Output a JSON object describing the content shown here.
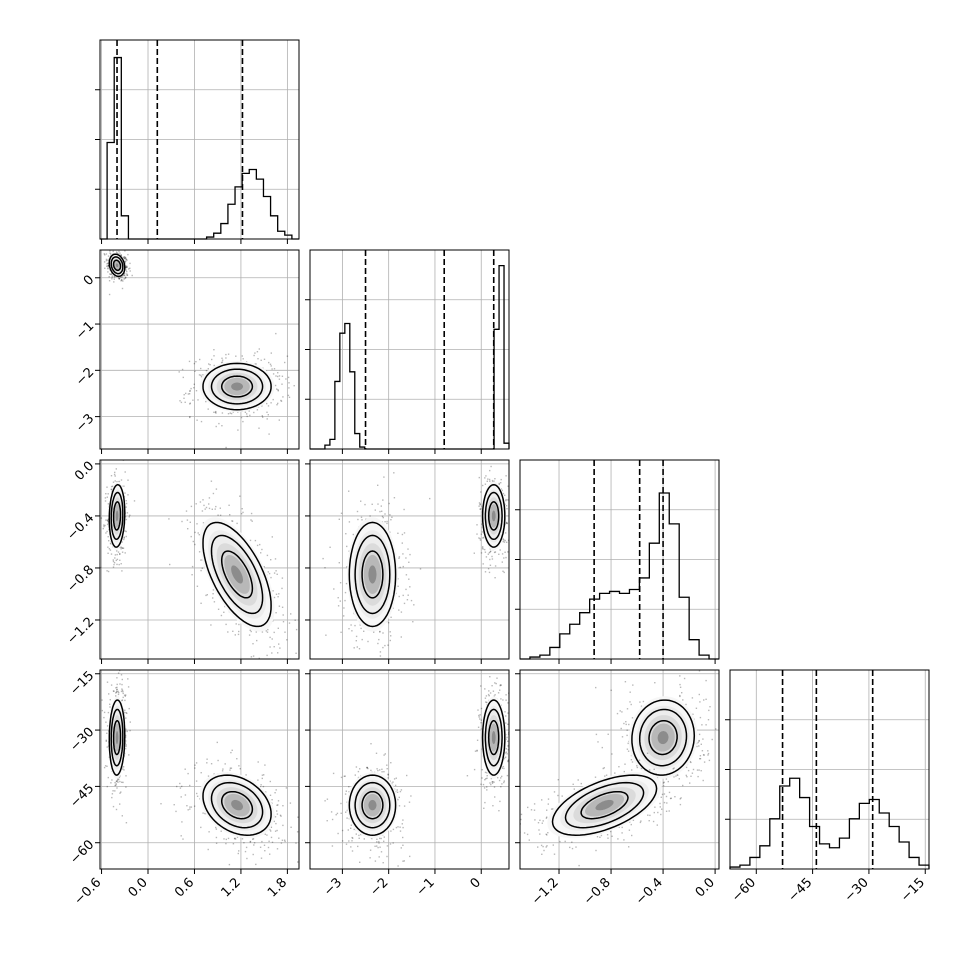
{
  "chart_data": {
    "type": "corner",
    "parameters": [
      {
        "ticks": [
          -0.6,
          -0.3,
          0.0,
          0.3,
          0.6,
          0.9,
          1.2,
          1.5,
          1.8
        ],
        "tick_labels": [
          "−0.6",
          "",
          "0.0",
          "",
          "0.6",
          "",
          "1.2",
          "",
          "1.8"
        ],
        "range": [
          -0.62,
          1.95
        ],
        "quantiles": [
          -0.4,
          0.12,
          1.22
        ],
        "hist_range": [
          -0.62,
          1.95
        ],
        "hist_counts": [
          0.0,
          0.5,
          0.94,
          0.12,
          0.0,
          0.0,
          0.0,
          0.0,
          0.0,
          0.0,
          0.0,
          0.0,
          0.0,
          0.0,
          0.0,
          0.01,
          0.03,
          0.08,
          0.18,
          0.27,
          0.34,
          0.36,
          0.31,
          0.22,
          0.12,
          0.04,
          0.02,
          0.0
        ]
      },
      {
        "ticks": [
          -3,
          -2,
          -1,
          0
        ],
        "tick_labels": [
          "−3",
          "−2",
          "−1",
          "0"
        ],
        "range": [
          -3.7,
          0.6
        ],
        "quantiles": [
          -2.5,
          -0.8,
          0.27
        ],
        "hist_range": [
          -3.7,
          0.6
        ],
        "hist_counts": [
          0.0,
          0.0,
          0.0,
          0.02,
          0.05,
          0.35,
          0.6,
          0.65,
          0.4,
          0.08,
          0.01,
          0.0,
          0.0,
          0.0,
          0.0,
          0.0,
          0.0,
          0.0,
          0.0,
          0.0,
          0.0,
          0.0,
          0.0,
          0.0,
          0.0,
          0.0,
          0.0,
          0.0,
          0.0,
          0.0,
          0.0,
          0.0,
          0.0,
          0.0,
          0.0,
          0.0,
          0.0,
          0.62,
          0.95,
          0.03
        ]
      },
      {
        "ticks": [
          -1.2,
          -1.0,
          -0.8,
          -0.6,
          -0.4,
          -0.2,
          0.0
        ],
        "tick_labels": [
          "−1.2",
          "",
          "−0.8",
          "",
          "−0.4",
          "",
          "0.0"
        ],
        "range": [
          -1.5,
          0.03
        ],
        "quantiles": [
          -0.93,
          -0.58,
          -0.4
        ],
        "hist_range": [
          -1.5,
          0.03
        ],
        "hist_counts": [
          0.0,
          0.01,
          0.02,
          0.06,
          0.13,
          0.18,
          0.24,
          0.31,
          0.34,
          0.35,
          0.34,
          0.36,
          0.42,
          0.6,
          0.86,
          0.7,
          0.32,
          0.1,
          0.02,
          0.0
        ]
      },
      {
        "ticks": [
          -60,
          -45,
          -30,
          -15
        ],
        "tick_labels": [
          "−60",
          "−45",
          "−30",
          "−15"
        ],
        "range": [
          -67,
          -14
        ],
        "quantiles": [
          -53,
          -44,
          -29
        ],
        "hist_range": [
          -67,
          -14
        ],
        "hist_counts": [
          0.01,
          0.02,
          0.06,
          0.12,
          0.26,
          0.43,
          0.47,
          0.37,
          0.22,
          0.13,
          0.11,
          0.16,
          0.26,
          0.34,
          0.36,
          0.29,
          0.22,
          0.14,
          0.06,
          0.02
        ]
      }
    ],
    "clusters": [
      {
        "mean": [
          -0.4,
          0.27,
          -0.4,
          -32
        ],
        "sd": [
          0.05,
          0.12,
          0.12,
          5
        ],
        "corr": {
          "0-1": -0.2,
          "0-2": 0.1,
          "0-3": 0.05,
          "1-2": 0.0,
          "1-3": 0.0,
          "2-3": 0.05
        },
        "weight": 0.45
      },
      {
        "mean": [
          1.15,
          -2.35,
          -0.85,
          -50
        ],
        "sd": [
          0.22,
          0.25,
          0.2,
          4
        ],
        "corr": {
          "0-1": 0.0,
          "0-2": -0.6,
          "0-3": -0.3,
          "1-2": 0.0,
          "1-3": 0.0,
          "2-3": 0.55
        },
        "weight": 0.55
      }
    ],
    "grid": true
  },
  "colors": {
    "line": "#000000",
    "grid": "#b0b0b0",
    "density": "#000000",
    "background": "#ffffff"
  }
}
